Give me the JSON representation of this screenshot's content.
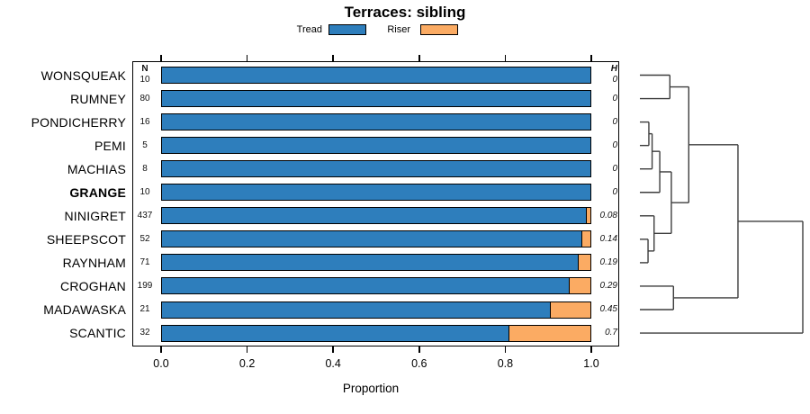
{
  "title": "Terraces: sibling",
  "legend": {
    "tread_label": "Tread",
    "riser_label": "Riser"
  },
  "colors": {
    "tread": "#2e7ebc",
    "riser": "#fbab63",
    "line": "#000000",
    "dendrogram_line": "#3d3d3d"
  },
  "columns": {
    "n_header": "N",
    "h_header": "H"
  },
  "axis": {
    "label": "Proportion",
    "tick_values": [
      0,
      0.2,
      0.4,
      0.6,
      0.8,
      1.0
    ],
    "tick_labels": [
      "0.0",
      "0.2",
      "0.4",
      "0.6",
      "0.8",
      "1.0"
    ]
  },
  "chart_data": {
    "type": "bar",
    "orientation": "horizontal-stacked",
    "title": "Terraces: sibling",
    "xlabel": "Proportion",
    "xlim": [
      0,
      1
    ],
    "grid": false,
    "legend_position": "top",
    "categories": [
      "WONSQUEAK",
      "RUMNEY",
      "PONDICHERRY",
      "PEMI",
      "MACHIAS",
      "GRANGE",
      "NINIGRET",
      "SHEEPSCOT",
      "RAYNHAM",
      "CROGHAN",
      "MADAWASKA",
      "SCANTIC"
    ],
    "bold_category": "GRANGE",
    "series": [
      {
        "name": "Tread",
        "values": [
          1,
          1,
          1,
          1,
          1,
          1,
          0.99,
          0.98,
          0.97,
          0.95,
          0.905,
          0.81
        ]
      },
      {
        "name": "Riser",
        "values": [
          0,
          0,
          0,
          0,
          0,
          0,
          0.01,
          0.02,
          0.03,
          0.05,
          0.095,
          0.19
        ]
      }
    ],
    "n_values": [
      "10",
      "80",
      "16",
      "5",
      "8",
      "10",
      "437",
      "52",
      "71",
      "199",
      "21",
      "32"
    ],
    "h_values": [
      "0",
      "0",
      "0",
      "0",
      "0",
      "0",
      "0.08",
      "0.14",
      "0.19",
      "0.29",
      "0.45",
      "0.7"
    ],
    "dendrogram": {
      "note": "heights normalized 0=leaf tips, 1=root",
      "tree": {
        "h": 1.0,
        "children": [
          {
            "h": 0.602,
            "children": [
              {
                "h": 0.3,
                "children": [
                  {
                    "h": 0.184,
                    "children": [
                      {
                        "leaf": 0
                      },
                      {
                        "leaf": 1
                      }
                    ]
                  },
                  {
                    "h": 0.193,
                    "children": [
                      {
                        "h": 0.122,
                        "children": [
                          {
                            "h": 0.075,
                            "children": [
                              {
                                "h": 0.055,
                                "children": [
                                  {
                                    "leaf": 2
                                  },
                                  {
                                    "leaf": 3
                                  }
                                ]
                              },
                              {
                                "leaf": 4
                              }
                            ]
                          },
                          {
                            "leaf": 5
                          }
                        ]
                      },
                      {
                        "h": 0.087,
                        "children": [
                          {
                            "leaf": 6
                          },
                          {
                            "h": 0.05,
                            "children": [
                              {
                                "leaf": 7
                              },
                              {
                                "leaf": 8
                              }
                            ]
                          }
                        ]
                      }
                    ]
                  }
                ]
              },
              {
                "h": 0.206,
                "children": [
                  {
                    "leaf": 9
                  },
                  {
                    "leaf": 10
                  }
                ]
              }
            ]
          },
          {
            "leaf": 11
          }
        ]
      }
    }
  }
}
